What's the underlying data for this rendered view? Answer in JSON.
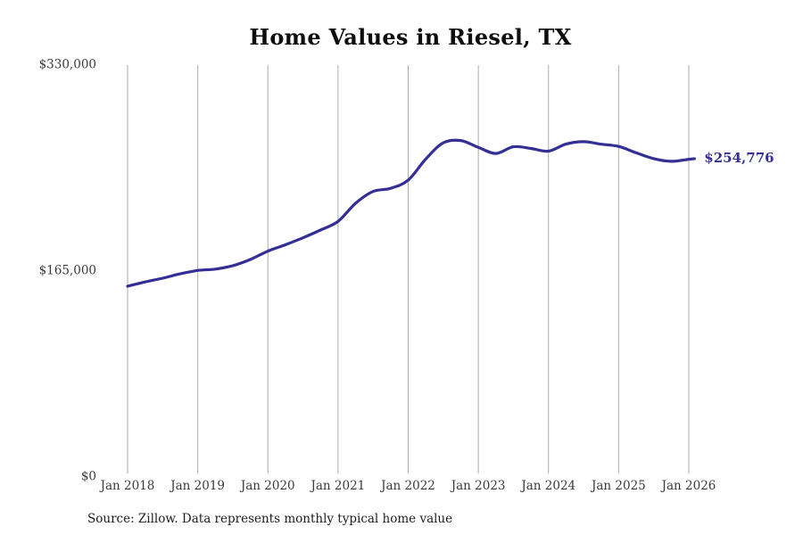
{
  "title": "Home Values in Riesel, TX",
  "latest_value_label": "$254,776",
  "source_note": "Source: Zillow. Data represents monthly typical home value",
  "colors": {
    "line": "#332f94",
    "grid": "#ababab",
    "tick_text": "#3a3a3a",
    "title_text": "#0d0d0d",
    "latest_value_text": "#332f94"
  },
  "y_axis": {
    "ticks": [
      {
        "label": "$330,000",
        "value": 330000
      },
      {
        "label": "$165,000",
        "value": 165000
      },
      {
        "label": "$0",
        "value": 0
      }
    ]
  },
  "x_axis": {
    "ticks": [
      "Jan 2018",
      "Jan 2019",
      "Jan 2020",
      "Jan 2021",
      "Jan 2022",
      "Jan 2023",
      "Jan 2024",
      "Jan 2025",
      "Jan 2026"
    ]
  },
  "chart_data": {
    "type": "line",
    "title": "Home Values in Riesel, TX",
    "xlabel": "",
    "ylabel": "",
    "ylim": [
      0,
      330000
    ],
    "grid": "vertical-only",
    "legend": "none",
    "series_name": "Typical home value (USD)",
    "x": [
      "Jan 2018",
      "Apr 2018",
      "Jul 2018",
      "Oct 2018",
      "Jan 2019",
      "Apr 2019",
      "Jul 2019",
      "Oct 2019",
      "Jan 2020",
      "Apr 2020",
      "Jul 2020",
      "Oct 2020",
      "Jan 2021",
      "Apr 2021",
      "Jul 2021",
      "Oct 2021",
      "Jan 2022",
      "Apr 2022",
      "Jul 2022",
      "Oct 2022",
      "Jan 2023",
      "Apr 2023",
      "Jul 2023",
      "Oct 2023",
      "Jan 2024",
      "Apr 2024",
      "Jul 2024",
      "Oct 2024",
      "Jan 2025",
      "Apr 2025",
      "Jul 2025",
      "Oct 2025",
      "Jan 2026",
      "Feb 2026"
    ],
    "x_numeric_years": [
      0,
      0.25,
      0.5,
      0.75,
      1,
      1.25,
      1.5,
      1.75,
      2,
      2.25,
      2.5,
      2.75,
      3,
      3.25,
      3.5,
      3.75,
      4,
      4.25,
      4.5,
      4.75,
      5,
      5.25,
      5.5,
      5.75,
      6,
      6.25,
      6.5,
      6.75,
      7,
      7.25,
      7.5,
      7.75,
      8,
      8.08
    ],
    "values": [
      152600,
      156000,
      159000,
      162500,
      165200,
      166300,
      169000,
      174000,
      180700,
      185800,
      191400,
      197600,
      204500,
      219000,
      228500,
      231000,
      237600,
      254500,
      267500,
      269300,
      263800,
      259000,
      264300,
      263000,
      260800,
      266500,
      268400,
      266400,
      264600,
      259500,
      254800,
      252700,
      254300,
      254776
    ],
    "latest_value": 254776
  }
}
